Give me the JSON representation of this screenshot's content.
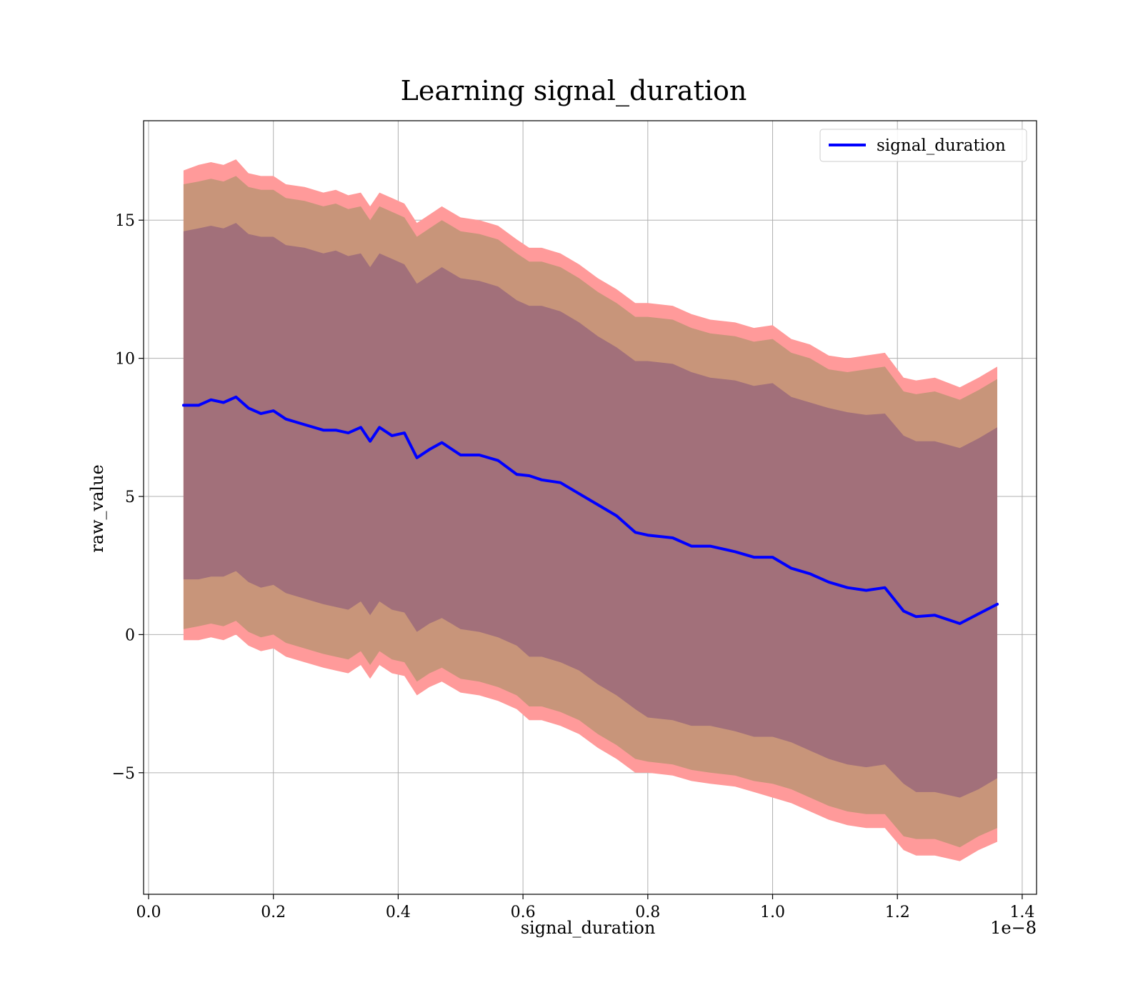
{
  "chart_data": {
    "type": "line",
    "title": "Learning signal_duration",
    "xlabel": "signal_duration",
    "ylabel": "raw_value",
    "x_offset_label": "1e−8",
    "xlim": [
      -0.008,
      1.423
    ],
    "ylim": [
      -9.4,
      18.6
    ],
    "xticks": [
      0.0,
      0.2,
      0.4,
      0.6,
      0.8,
      1.0,
      1.2,
      1.4
    ],
    "xtick_labels": [
      "0.0",
      "0.2",
      "0.4",
      "0.6",
      "0.8",
      "1.0",
      "1.2",
      "1.4"
    ],
    "yticks": [
      -5,
      0,
      5,
      10,
      15
    ],
    "ytick_labels": [
      "−5",
      "0",
      "5",
      "10",
      "15"
    ],
    "grid": true,
    "legend_position": "top-right",
    "colors": {
      "line": "#0000ff",
      "band_outer": "#ff9a9a",
      "band_middle": "#c8957a",
      "band_inner": "#a2707a"
    },
    "series": [
      {
        "name": "signal_duration",
        "x": [
          0.056,
          0.08,
          0.1,
          0.12,
          0.14,
          0.16,
          0.18,
          0.2,
          0.22,
          0.25,
          0.28,
          0.3,
          0.32,
          0.34,
          0.355,
          0.37,
          0.39,
          0.41,
          0.43,
          0.45,
          0.47,
          0.5,
          0.53,
          0.56,
          0.59,
          0.61,
          0.63,
          0.66,
          0.69,
          0.72,
          0.75,
          0.78,
          0.8,
          0.84,
          0.87,
          0.9,
          0.94,
          0.97,
          1.0,
          1.03,
          1.06,
          1.09,
          1.12,
          1.15,
          1.18,
          1.21,
          1.23,
          1.26,
          1.3,
          1.33,
          1.36
        ],
        "values": [
          8.3,
          8.3,
          8.5,
          8.4,
          8.6,
          8.2,
          8.0,
          8.1,
          7.8,
          7.6,
          7.4,
          7.4,
          7.3,
          7.5,
          7.0,
          7.5,
          7.2,
          7.3,
          6.4,
          6.7,
          6.95,
          6.5,
          6.5,
          6.3,
          5.8,
          5.75,
          5.6,
          5.5,
          5.1,
          4.7,
          4.3,
          3.7,
          3.6,
          3.5,
          3.2,
          3.2,
          3.0,
          2.8,
          2.8,
          2.4,
          2.2,
          1.9,
          1.7,
          1.6,
          1.7,
          0.85,
          0.65,
          0.7,
          0.4,
          0.75,
          1.1
        ]
      }
    ],
    "bands": {
      "outer_upper": [
        16.8,
        17.0,
        17.1,
        17.0,
        17.2,
        16.7,
        16.6,
        16.6,
        16.3,
        16.2,
        16.0,
        16.1,
        15.9,
        16.0,
        15.5,
        16.0,
        15.8,
        15.6,
        14.9,
        15.2,
        15.5,
        15.1,
        15.0,
        14.8,
        14.3,
        14.0,
        14.0,
        13.8,
        13.4,
        12.9,
        12.5,
        12.0,
        12.0,
        11.9,
        11.6,
        11.4,
        11.3,
        11.1,
        11.2,
        10.7,
        10.5,
        10.1,
        10.0,
        10.1,
        10.2,
        9.3,
        9.2,
        9.3,
        8.95,
        9.3,
        9.7
      ],
      "middle_upper": [
        16.3,
        16.4,
        16.5,
        16.4,
        16.6,
        16.2,
        16.1,
        16.1,
        15.8,
        15.7,
        15.5,
        15.6,
        15.4,
        15.5,
        15.0,
        15.5,
        15.3,
        15.1,
        14.4,
        14.7,
        15.0,
        14.6,
        14.5,
        14.3,
        13.8,
        13.5,
        13.5,
        13.3,
        12.9,
        12.4,
        12.0,
        11.5,
        11.5,
        11.4,
        11.1,
        10.9,
        10.8,
        10.6,
        10.7,
        10.2,
        10.0,
        9.6,
        9.5,
        9.6,
        9.7,
        8.8,
        8.7,
        8.8,
        8.5,
        8.85,
        9.25
      ],
      "inner_upper": [
        14.6,
        14.7,
        14.8,
        14.7,
        14.9,
        14.5,
        14.4,
        14.4,
        14.1,
        14.0,
        13.8,
        13.9,
        13.7,
        13.8,
        13.3,
        13.8,
        13.6,
        13.4,
        12.7,
        13.0,
        13.3,
        12.9,
        12.8,
        12.6,
        12.1,
        11.9,
        11.9,
        11.7,
        11.3,
        10.8,
        10.4,
        9.9,
        9.9,
        9.8,
        9.5,
        9.3,
        9.2,
        9.0,
        9.1,
        8.6,
        8.4,
        8.2,
        8.05,
        7.95,
        8.0,
        7.2,
        7.0,
        7.0,
        6.75,
        7.1,
        7.5
      ],
      "inner_lower": [
        2.0,
        2.0,
        2.1,
        2.1,
        2.3,
        1.9,
        1.7,
        1.8,
        1.5,
        1.3,
        1.1,
        1.0,
        0.9,
        1.2,
        0.7,
        1.2,
        0.9,
        0.8,
        0.1,
        0.4,
        0.6,
        0.2,
        0.1,
        -0.1,
        -0.4,
        -0.8,
        -0.8,
        -1.0,
        -1.3,
        -1.8,
        -2.2,
        -2.7,
        -3.0,
        -3.1,
        -3.3,
        -3.3,
        -3.5,
        -3.7,
        -3.7,
        -3.9,
        -4.2,
        -4.5,
        -4.7,
        -4.8,
        -4.7,
        -5.4,
        -5.7,
        -5.7,
        -5.9,
        -5.6,
        -5.2
      ],
      "middle_lower": [
        0.2,
        0.3,
        0.4,
        0.3,
        0.5,
        0.1,
        -0.1,
        0.0,
        -0.3,
        -0.5,
        -0.7,
        -0.8,
        -0.9,
        -0.6,
        -1.1,
        -0.6,
        -0.9,
        -1.0,
        -1.7,
        -1.4,
        -1.2,
        -1.6,
        -1.7,
        -1.9,
        -2.2,
        -2.6,
        -2.6,
        -2.8,
        -3.1,
        -3.6,
        -4.0,
        -4.5,
        -4.6,
        -4.7,
        -4.9,
        -5.0,
        -5.1,
        -5.3,
        -5.4,
        -5.6,
        -5.9,
        -6.2,
        -6.4,
        -6.5,
        -6.5,
        -7.3,
        -7.4,
        -7.4,
        -7.7,
        -7.3,
        -7.0
      ],
      "outer_lower": [
        -0.2,
        -0.2,
        -0.1,
        -0.2,
        0.0,
        -0.4,
        -0.6,
        -0.5,
        -0.8,
        -1.0,
        -1.2,
        -1.3,
        -1.4,
        -1.1,
        -1.6,
        -1.1,
        -1.4,
        -1.5,
        -2.2,
        -1.9,
        -1.7,
        -2.1,
        -2.2,
        -2.4,
        -2.7,
        -3.1,
        -3.1,
        -3.3,
        -3.6,
        -4.1,
        -4.5,
        -5.0,
        -5.0,
        -5.1,
        -5.3,
        -5.4,
        -5.5,
        -5.7,
        -5.9,
        -6.1,
        -6.4,
        -6.7,
        -6.9,
        -7.0,
        -7.0,
        -7.8,
        -8.0,
        -8.0,
        -8.2,
        -7.8,
        -7.5
      ]
    }
  }
}
